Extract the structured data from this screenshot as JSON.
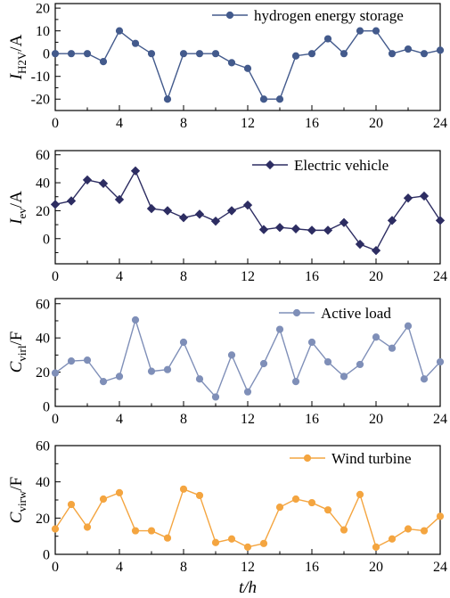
{
  "figure": {
    "xlabel": "t/h"
  },
  "chart_data": [
    {
      "type": "line",
      "ylabel": "I",
      "ylabel_sub": "H2V",
      "ylabel_unit": "/A",
      "x": [
        0,
        1,
        2,
        3,
        4,
        5,
        6,
        7,
        8,
        9,
        10,
        11,
        12,
        13,
        14,
        15,
        16,
        17,
        18,
        19,
        20,
        21,
        22,
        23,
        24
      ],
      "series": [
        {
          "name": "hydrogen energy storage",
          "color": "#435a8c",
          "marker": "circle",
          "values": [
            0,
            0,
            0,
            -3.5,
            10,
            4.5,
            0,
            -20,
            0,
            0,
            0,
            -4,
            -6.5,
            -20,
            -20,
            -1,
            0,
            6.5,
            0,
            10,
            10,
            0,
            2,
            0,
            1.5
          ]
        }
      ],
      "xlim": [
        0,
        24
      ],
      "ylim": [
        -25,
        22
      ],
      "xticks": [
        "0",
        "4",
        "8",
        "12",
        "16",
        "20",
        "24"
      ],
      "yticks": [
        "-20",
        "-10",
        "0",
        "10",
        "20"
      ],
      "yticks_values": [
        -20,
        -10,
        0,
        10,
        20
      ]
    },
    {
      "type": "line",
      "ylabel": "I",
      "ylabel_sub": "ev",
      "ylabel_unit": "/A",
      "x": [
        0,
        1,
        2,
        3,
        4,
        5,
        6,
        7,
        8,
        9,
        10,
        11,
        12,
        13,
        14,
        15,
        16,
        17,
        18,
        19,
        20,
        21,
        22,
        23,
        24
      ],
      "series": [
        {
          "name": "Electric vehicle",
          "color": "#2d2d62",
          "marker": "diamond",
          "values": [
            24.5,
            27,
            42,
            39.5,
            28,
            48.5,
            21.5,
            20,
            15,
            17.5,
            12.5,
            20,
            24,
            6.5,
            8,
            7,
            6,
            6,
            11.5,
            -4,
            -8.5,
            13,
            29,
            30.5,
            13
          ]
        }
      ],
      "xlim": [
        0,
        24
      ],
      "ylim": [
        -18,
        63
      ],
      "xticks": [
        "0",
        "4",
        "8",
        "12",
        "16",
        "20",
        "24"
      ],
      "yticks": [
        "0",
        "20",
        "40",
        "60"
      ],
      "yticks_values": [
        0,
        20,
        40,
        60
      ]
    },
    {
      "type": "line",
      "ylabel": "C",
      "ylabel_sub": "virl",
      "ylabel_unit": "/F",
      "x": [
        0,
        1,
        2,
        3,
        4,
        5,
        6,
        7,
        8,
        9,
        10,
        11,
        12,
        13,
        14,
        15,
        16,
        17,
        18,
        19,
        20,
        21,
        22,
        23,
        24
      ],
      "series": [
        {
          "name": "Active load",
          "color": "#7f8fb8",
          "marker": "circle",
          "values": [
            19.5,
            26.5,
            27,
            14.5,
            17.5,
            50.5,
            20.5,
            21.5,
            37.5,
            16,
            5.5,
            30,
            8.5,
            25,
            45,
            14.5,
            37.5,
            26,
            17.5,
            24.5,
            40.5,
            34,
            47,
            16,
            26
          ]
        }
      ],
      "xlim": [
        0,
        24
      ],
      "ylim": [
        0,
        63
      ],
      "xticks": [
        "0",
        "4",
        "8",
        "12",
        "16",
        "20",
        "24"
      ],
      "yticks": [
        "0",
        "20",
        "40",
        "60"
      ],
      "yticks_values": [
        0,
        20,
        40,
        60
      ]
    },
    {
      "type": "line",
      "ylabel": "C",
      "ylabel_sub": "virw",
      "ylabel_unit": "/F",
      "x": [
        0,
        1,
        2,
        3,
        4,
        5,
        6,
        7,
        8,
        9,
        10,
        11,
        12,
        13,
        14,
        15,
        16,
        17,
        18,
        19,
        20,
        21,
        22,
        23,
        24
      ],
      "series": [
        {
          "name": "Wind turbine",
          "color": "#f4a540",
          "marker": "circle",
          "values": [
            14,
            27.5,
            15,
            30.5,
            34,
            13,
            13,
            9,
            36,
            32.5,
            6.5,
            8.5,
            4,
            6,
            26,
            30.5,
            28.5,
            24.5,
            13.5,
            33,
            4,
            8.5,
            14,
            13,
            21
          ]
        }
      ],
      "xlim": [
        0,
        24
      ],
      "ylim": [
        0,
        60
      ],
      "xticks": [
        "0",
        "4",
        "8",
        "12",
        "16",
        "20",
        "24"
      ],
      "yticks": [
        "0",
        "20",
        "40",
        "60"
      ],
      "yticks_values": [
        0,
        20,
        40,
        60
      ]
    }
  ]
}
